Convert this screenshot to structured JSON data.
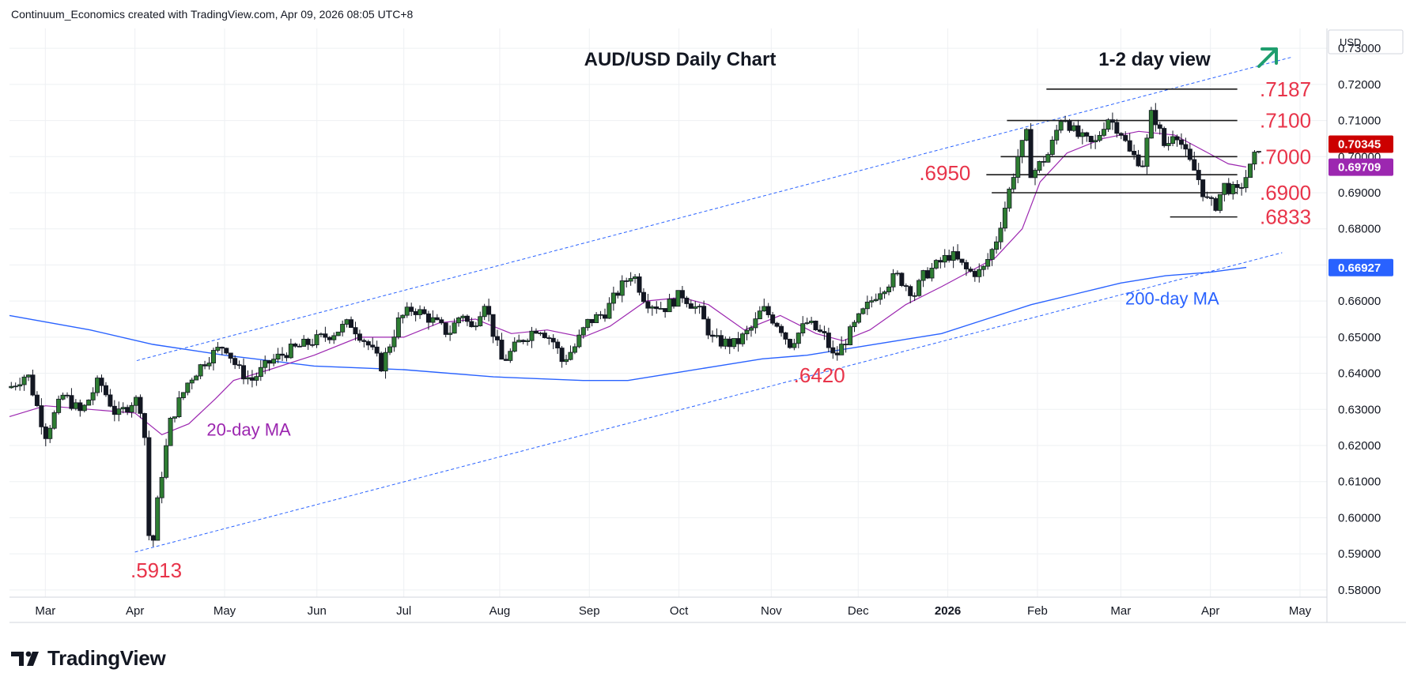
{
  "header": {
    "credit": "Continuum_Economics created with TradingView.com, Apr 09, 2026 08:05 UTC+8"
  },
  "footer": {
    "brand": "TradingView"
  },
  "colors": {
    "up": "#26a69a",
    "upFill": "#ffffff",
    "candleStroke": "#131722",
    "upBody": "#2e7d32",
    "level": "#e8344a",
    "ma20": "#9c27b0",
    "ma200": "#2962ff",
    "channel": "#2962ff",
    "arrow": "#1f9e6e",
    "grid": "#eef0f3"
  },
  "chart_data": {
    "type": "candlestick",
    "title": "AUD/USD Daily Chart",
    "subtitle": "1-2 day view",
    "view_arrow": "up-right-arrow-icon",
    "currency": "USD",
    "ylim": [
      0.578,
      0.7355
    ],
    "y_ticks": [
      "0.73000",
      "0.72000",
      "0.71000",
      "0.70000",
      "0.69000",
      "0.68000",
      "0.67000",
      "0.66000",
      "0.65000",
      "0.64000",
      "0.63000",
      "0.62000",
      "0.61000",
      "0.60000",
      "0.59000",
      "0.58000"
    ],
    "y_tick_values": [
      0.73,
      0.72,
      0.71,
      0.7,
      0.69,
      0.68,
      0.67,
      0.66,
      0.65,
      0.64,
      0.63,
      0.62,
      0.61,
      0.6,
      0.59,
      0.58
    ],
    "x_ticks": [
      {
        "label": "Mar",
        "t": 0.0
      },
      {
        "label": "Apr",
        "t": 1.0
      },
      {
        "label": "May",
        "t": 2.0
      },
      {
        "label": "Jun",
        "t": 3.03
      },
      {
        "label": "Jul",
        "t": 4.0
      },
      {
        "label": "Aug",
        "t": 5.07
      },
      {
        "label": "Sep",
        "t": 6.07
      },
      {
        "label": "Oct",
        "t": 7.07
      },
      {
        "label": "Nov",
        "t": 8.1
      },
      {
        "label": "Dec",
        "t": 9.07
      },
      {
        "label": "2026",
        "t": 10.07,
        "bold": true
      },
      {
        "label": "Feb",
        "t": 11.07
      },
      {
        "label": "Mar",
        "t": 12.0
      },
      {
        "label": "Apr",
        "t": 13.0
      },
      {
        "label": "May",
        "t": 14.0
      }
    ],
    "time_range": [
      -0.4,
      14.3
    ],
    "price_badges": [
      {
        "label": "0.70345",
        "value": 0.70345,
        "bg": "#cc0000",
        "fg": "#ffffff"
      },
      {
        "label": "0.69709",
        "value": 0.69709,
        "bg": "#9c27b0",
        "fg": "#ffffff"
      },
      {
        "label": "0.66927",
        "value": 0.66927,
        "bg": "#2962ff",
        "fg": "#ffffff"
      }
    ],
    "price_path": [
      [
        -0.4,
        0.636
      ],
      [
        -0.2,
        0.64
      ],
      [
        0.0,
        0.623
      ],
      [
        0.2,
        0.634
      ],
      [
        0.4,
        0.629
      ],
      [
        0.6,
        0.638
      ],
      [
        0.8,
        0.628
      ],
      [
        1.0,
        0.633
      ],
      [
        1.1,
        0.629
      ],
      [
        1.14,
        0.596
      ],
      [
        1.2,
        0.593
      ],
      [
        1.27,
        0.608
      ],
      [
        1.4,
        0.627
      ],
      [
        1.6,
        0.638
      ],
      [
        1.8,
        0.644
      ],
      [
        2.0,
        0.648
      ],
      [
        2.15,
        0.641
      ],
      [
        2.3,
        0.638
      ],
      [
        2.5,
        0.643
      ],
      [
        2.7,
        0.646
      ],
      [
        3.0,
        0.649
      ],
      [
        3.2,
        0.651
      ],
      [
        3.4,
        0.654
      ],
      [
        3.6,
        0.648
      ],
      [
        3.75,
        0.642
      ],
      [
        3.95,
        0.655
      ],
      [
        4.1,
        0.658
      ],
      [
        4.3,
        0.655
      ],
      [
        4.5,
        0.651
      ],
      [
        4.65,
        0.657
      ],
      [
        4.75,
        0.652
      ],
      [
        4.9,
        0.66
      ],
      [
        5.0,
        0.651
      ],
      [
        5.1,
        0.643
      ],
      [
        5.3,
        0.649
      ],
      [
        5.5,
        0.653
      ],
      [
        5.7,
        0.648
      ],
      [
        5.75,
        0.643
      ],
      [
        5.9,
        0.647
      ],
      [
        6.05,
        0.654
      ],
      [
        6.25,
        0.657
      ],
      [
        6.4,
        0.663
      ],
      [
        6.55,
        0.668
      ],
      [
        6.7,
        0.66
      ],
      [
        6.9,
        0.658
      ],
      [
        7.1,
        0.662
      ],
      [
        7.3,
        0.657
      ],
      [
        7.45,
        0.649
      ],
      [
        7.7,
        0.648
      ],
      [
        7.9,
        0.653
      ],
      [
        8.0,
        0.658
      ],
      [
        8.2,
        0.653
      ],
      [
        8.3,
        0.648
      ],
      [
        8.5,
        0.654
      ],
      [
        8.7,
        0.65
      ],
      [
        8.8,
        0.644
      ],
      [
        8.9,
        0.648
      ],
      [
        9.1,
        0.656
      ],
      [
        9.3,
        0.663
      ],
      [
        9.5,
        0.667
      ],
      [
        9.7,
        0.662
      ],
      [
        9.8,
        0.667
      ],
      [
        10.0,
        0.671
      ],
      [
        10.1,
        0.673
      ],
      [
        10.3,
        0.668
      ],
      [
        10.45,
        0.668
      ],
      [
        10.6,
        0.676
      ],
      [
        10.75,
        0.69
      ],
      [
        10.85,
        0.7
      ],
      [
        10.95,
        0.706
      ],
      [
        11.0,
        0.695
      ],
      [
        11.2,
        0.701
      ],
      [
        11.35,
        0.712
      ],
      [
        11.5,
        0.706
      ],
      [
        11.7,
        0.703
      ],
      [
        11.85,
        0.711
      ],
      [
        12.0,
        0.707
      ],
      [
        12.1,
        0.701
      ],
      [
        12.25,
        0.698
      ],
      [
        12.35,
        0.713
      ],
      [
        12.5,
        0.702
      ],
      [
        12.6,
        0.708
      ],
      [
        12.75,
        0.699
      ],
      [
        12.85,
        0.695
      ],
      [
        12.95,
        0.688
      ],
      [
        13.05,
        0.686
      ],
      [
        13.15,
        0.692
      ],
      [
        13.3,
        0.69
      ],
      [
        13.45,
        0.697
      ],
      [
        13.55,
        0.7035
      ]
    ],
    "ma20": [
      [
        -0.4,
        0.628
      ],
      [
        0.0,
        0.631
      ],
      [
        0.5,
        0.63
      ],
      [
        1.0,
        0.629
      ],
      [
        1.3,
        0.623
      ],
      [
        1.6,
        0.626
      ],
      [
        1.9,
        0.633
      ],
      [
        2.1,
        0.638
      ],
      [
        2.5,
        0.641
      ],
      [
        3.0,
        0.645
      ],
      [
        3.5,
        0.65
      ],
      [
        4.0,
        0.65
      ],
      [
        4.4,
        0.654
      ],
      [
        4.8,
        0.655
      ],
      [
        5.2,
        0.651
      ],
      [
        5.6,
        0.652
      ],
      [
        6.0,
        0.65
      ],
      [
        6.3,
        0.653
      ],
      [
        6.7,
        0.66
      ],
      [
        7.1,
        0.661
      ],
      [
        7.4,
        0.659
      ],
      [
        7.8,
        0.652
      ],
      [
        8.2,
        0.656
      ],
      [
        8.6,
        0.651
      ],
      [
        8.9,
        0.649
      ],
      [
        9.2,
        0.652
      ],
      [
        9.6,
        0.659
      ],
      [
        10.0,
        0.664
      ],
      [
        10.3,
        0.668
      ],
      [
        10.6,
        0.672
      ],
      [
        10.9,
        0.68
      ],
      [
        11.1,
        0.693
      ],
      [
        11.4,
        0.701
      ],
      [
        11.8,
        0.705
      ],
      [
        12.2,
        0.707
      ],
      [
        12.6,
        0.706
      ],
      [
        12.9,
        0.702
      ],
      [
        13.2,
        0.698
      ],
      [
        13.4,
        0.6971
      ]
    ],
    "ma200": [
      [
        -0.4,
        0.656
      ],
      [
        0.5,
        0.652
      ],
      [
        1.2,
        0.648
      ],
      [
        2.0,
        0.645
      ],
      [
        3.0,
        0.642
      ],
      [
        4.0,
        0.641
      ],
      [
        5.0,
        0.639
      ],
      [
        6.0,
        0.638
      ],
      [
        6.5,
        0.638
      ],
      [
        7.0,
        0.64
      ],
      [
        7.5,
        0.642
      ],
      [
        8.0,
        0.644
      ],
      [
        8.5,
        0.645
      ],
      [
        9.0,
        0.647
      ],
      [
        9.5,
        0.649
      ],
      [
        10.0,
        0.651
      ],
      [
        10.5,
        0.655
      ],
      [
        11.0,
        0.659
      ],
      [
        11.5,
        0.662
      ],
      [
        12.0,
        0.665
      ],
      [
        12.5,
        0.667
      ],
      [
        13.0,
        0.668
      ],
      [
        13.4,
        0.6693
      ]
    ],
    "channel_upper": [
      [
        1.02,
        0.6435
      ],
      [
        13.9,
        0.7275
      ]
    ],
    "channel_lower": [
      [
        1.0,
        0.5905
      ],
      [
        13.8,
        0.6734
      ]
    ],
    "levels": [
      {
        "label": ".7187",
        "value": 0.7187,
        "t1": 11.17,
        "t2": 13.3,
        "label_t": 13.55
      },
      {
        "label": ".7100",
        "value": 0.71,
        "t1": 10.73,
        "t2": 13.3,
        "label_t": 13.55
      },
      {
        "label": ".7000",
        "value": 0.7,
        "t1": 10.66,
        "t2": 13.3,
        "label_t": 13.55
      },
      {
        "label": ".6950",
        "value": 0.695,
        "t1": 10.5,
        "t2": 13.3,
        "label_t": 9.75,
        "label_dy": -2
      },
      {
        "label": ".6900",
        "value": 0.69,
        "t1": 10.56,
        "t2": 13.3,
        "label_t": 13.55
      },
      {
        "label": ".6833",
        "value": 0.6833,
        "t1": 12.55,
        "t2": 13.3,
        "label_t": 13.55
      }
    ],
    "annotations": [
      {
        "label": ".5913",
        "t": 0.95,
        "value": 0.5835,
        "color": "#e8344a",
        "cls": "level-text"
      },
      {
        "label": ".6420",
        "t": 8.35,
        "value": 0.6375,
        "color": "#e8344a",
        "cls": "level-text"
      },
      {
        "label": "20-day MA",
        "t": 1.8,
        "value": 0.6227,
        "color": "#9c27b0",
        "cls": "ma-text"
      },
      {
        "label": "200-day MA",
        "t": 12.05,
        "value": 0.659,
        "color": "#2962ff",
        "cls": "ma-text"
      }
    ]
  }
}
